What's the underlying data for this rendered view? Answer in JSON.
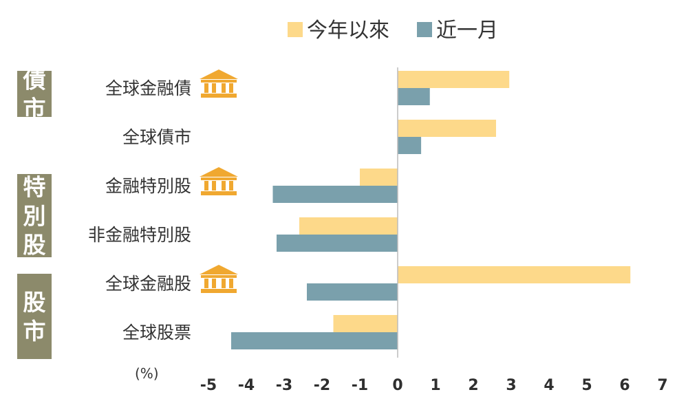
{
  "chart_data": {
    "type": "bar",
    "orientation": "horizontal",
    "categories": [
      "全球金融債",
      "全球債市",
      "金融特別股",
      "非金融特別股",
      "全球金融股",
      "全球股票"
    ],
    "series": [
      {
        "name": "今年以來",
        "color": "#fdd98a",
        "values": [
          2.95,
          2.6,
          -1.0,
          -2.6,
          6.15,
          -1.7
        ]
      },
      {
        "name": "近一月",
        "color": "#7aa0ac",
        "values": [
          0.85,
          0.62,
          -3.3,
          -3.2,
          -2.4,
          -4.4
        ]
      }
    ],
    "xlim": [
      -5,
      7
    ],
    "x_ticks": [
      "-5",
      "-4",
      "-3",
      "-2",
      "-1",
      "0",
      "1",
      "2",
      "3",
      "4",
      "5",
      "6",
      "7"
    ],
    "unit_label": "(%)",
    "legend_position": "top",
    "grid": false,
    "groups": [
      {
        "label": "債市",
        "categories": [
          "全球金融債",
          "全球債市"
        ]
      },
      {
        "label": "特別股",
        "categories": [
          "金融特別股",
          "非金融特別股"
        ]
      },
      {
        "label": "股市",
        "categories": [
          "全球金融股",
          "全球股票"
        ]
      }
    ],
    "bank_icon_categories": [
      "全球金融債",
      "金融特別股",
      "全球金融股"
    ],
    "colors": {
      "group_box": "#8c8a6b",
      "icon": "#f0a830",
      "axis": "#bbbbbb"
    }
  }
}
